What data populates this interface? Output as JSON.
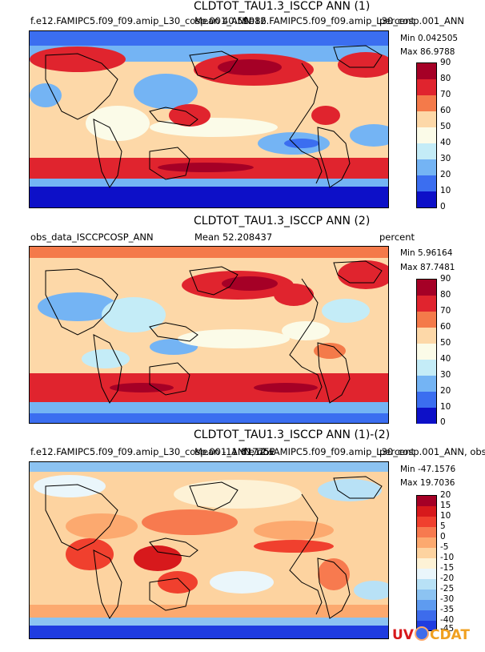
{
  "panels": [
    {
      "title": "CLDTOT_TAU1.3_ISCCP ANN (1)",
      "left_text": "f.e12.FAMIPC5.f09_f09.amip_L30_cosp.001_ANN",
      "mean_text": "Mean 40.59086",
      "overlay_text": "f.e12.FAMIPC5.f09_f09.amip_L30_cosp.001_ANN",
      "units": "percent",
      "min_text": "Min 0.042505",
      "max_text": "Max 86.9788",
      "ticks": [
        "90",
        "80",
        "70",
        "60",
        "50",
        "40",
        "30",
        "20",
        "10",
        "0"
      ],
      "colors": [
        "#a50026",
        "#e0242e",
        "#f47a4a",
        "#fdd8a8",
        "#fbfbe8",
        "#c4ecf7",
        "#74b4f4",
        "#3b6ef0",
        "#0d10c8"
      ]
    },
    {
      "title": "CLDTOT_TAU1.3_ISCCP ANN (2)",
      "left_text": "obs_data_ISCCPCOSP_ANN",
      "mean_text": "Mean 52.208437",
      "overlay_text": "",
      "units": "percent",
      "min_text": "Min 5.96164",
      "max_text": "Max 87.7481",
      "ticks": [
        "90",
        "80",
        "70",
        "60",
        "50",
        "40",
        "30",
        "20",
        "10",
        "0"
      ],
      "colors": [
        "#a50026",
        "#e0242e",
        "#f47a4a",
        "#fdd8a8",
        "#fbfbe8",
        "#c4ecf7",
        "#74b4f4",
        "#3b6ef0",
        "#0d10c8"
      ]
    },
    {
      "title": "CLDTOT_TAU1.3_ISCCP ANN (1)-(2)",
      "left_text": "f.e12.FAMIPC5.f09_f09.amip_L30_cosp.001_ANN, obs",
      "mean_text": "Mean -11.617752",
      "overlay_text": "f.e12.FAMIPC5.f09_f09.amip_L30_cosp.001_ANN, obs",
      "units": "percent",
      "min_text": "Min -47.1576",
      "max_text": "Max 19.7036",
      "ticks": [
        "20",
        "15",
        "10",
        "5",
        "0",
        "-5",
        "-10",
        "-15",
        "-20",
        "-25",
        "-30",
        "-35",
        "-40",
        "-45"
      ],
      "colors": [
        "#a50026",
        "#d7191c",
        "#f0402e",
        "#f77a4f",
        "#fca96f",
        "#fdd3a0",
        "#fdf2d6",
        "#eaf6fb",
        "#b8e1f6",
        "#8cc3f2",
        "#5e9bf0",
        "#3d6cec",
        "#1f3ce0"
      ]
    }
  ],
  "logo": {
    "text_uv": "UV",
    "text_cdat": "CDAT"
  }
}
